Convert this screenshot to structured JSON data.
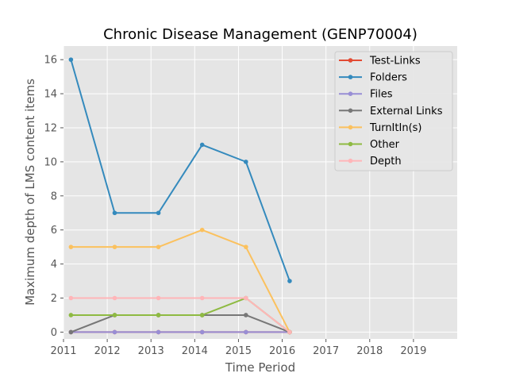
{
  "chart_data": {
    "type": "line",
    "title": "Chronic Disease Management (GENP70004)",
    "xlabel": "Time Period",
    "ylabel": "Maximum depth of LMS content items",
    "xlim": [
      2011,
      2020
    ],
    "ylim": [
      -0.4,
      16.8
    ],
    "xticks": [
      2011,
      2012,
      2013,
      2014,
      2015,
      2016,
      2017,
      2018,
      2019
    ],
    "yticks": [
      0,
      2,
      4,
      6,
      8,
      10,
      12,
      14,
      16
    ],
    "grid": true,
    "legend_position": "upper-right",
    "x": [
      2011.17,
      2012.17,
      2013.17,
      2014.17,
      2015.17,
      2016.17
    ],
    "series": [
      {
        "name": "Test-Links",
        "color": "#e24a33",
        "values": [
          0,
          0,
          0,
          0,
          0,
          0
        ]
      },
      {
        "name": "Folders",
        "color": "#348abd",
        "values": [
          16,
          7,
          7,
          11,
          10,
          3
        ]
      },
      {
        "name": "Files",
        "color": "#988ed5",
        "values": [
          0,
          0,
          0,
          0,
          0,
          0
        ]
      },
      {
        "name": "External Links",
        "color": "#777777",
        "values": [
          0,
          1,
          1,
          1,
          1,
          0
        ]
      },
      {
        "name": "TurnItIn(s)",
        "color": "#fbc15e",
        "values": [
          5,
          5,
          5,
          6,
          5,
          0
        ]
      },
      {
        "name": "Other",
        "color": "#8eba42",
        "values": [
          1,
          1,
          1,
          1,
          2,
          0
        ]
      },
      {
        "name": "Depth",
        "color": "#ffb5b8",
        "values": [
          2,
          2,
          2,
          2,
          2,
          0
        ]
      }
    ]
  }
}
